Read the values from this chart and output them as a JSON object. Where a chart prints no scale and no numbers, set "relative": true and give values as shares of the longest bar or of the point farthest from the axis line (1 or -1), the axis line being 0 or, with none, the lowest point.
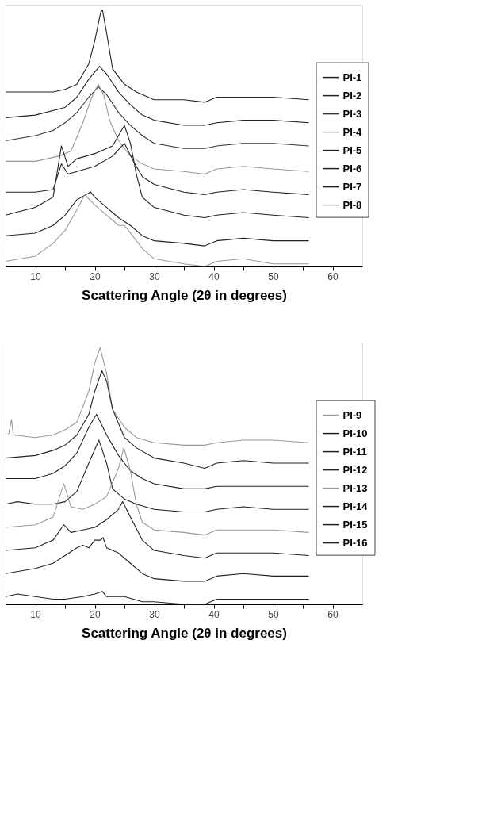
{
  "chart_data": [
    {
      "type": "line",
      "relative": true,
      "xlabel": "Scattering Angle (2θ in degrees)",
      "xlim": [
        5,
        65
      ],
      "xticks": [
        10,
        {
          "value": 15,
          "label": null
        },
        20,
        {
          "value": 25,
          "label": null
        },
        30,
        {
          "value": 35,
          "label": null
        },
        40,
        {
          "value": 45,
          "label": null
        },
        50,
        {
          "value": 55,
          "label": null
        },
        60
      ],
      "legend": "right",
      "grid": false,
      "series": [
        {
          "name": "PI-1",
          "color": "#222222",
          "x": [
            5,
            10,
            13,
            15,
            17,
            19,
            20,
            21,
            21.3,
            22,
            23,
            25,
            27,
            30,
            35,
            38.5,
            40.5,
            45,
            50,
            56
          ],
          "values": [
            0.68,
            0.68,
            0.68,
            0.69,
            0.71,
            0.79,
            0.88,
            0.99,
            1.0,
            0.91,
            0.77,
            0.71,
            0.68,
            0.65,
            0.65,
            0.64,
            0.66,
            0.66,
            0.66,
            0.65
          ]
        },
        {
          "name": "PI-2",
          "color": "#222222",
          "x": [
            5,
            10,
            15,
            17,
            19,
            20.8,
            22,
            24,
            26,
            28,
            30,
            35,
            38.5,
            40.5,
            45,
            50,
            56
          ],
          "values": [
            0.58,
            0.59,
            0.62,
            0.66,
            0.73,
            0.78,
            0.75,
            0.68,
            0.63,
            0.59,
            0.57,
            0.55,
            0.55,
            0.56,
            0.57,
            0.57,
            0.56
          ]
        },
        {
          "name": "PI-3",
          "color": "#333333",
          "x": [
            5,
            10,
            13,
            15,
            17,
            19,
            20.6,
            22,
            24,
            26,
            28,
            30,
            35,
            38.5,
            40.5,
            45,
            50,
            56
          ],
          "values": [
            0.49,
            0.51,
            0.53,
            0.56,
            0.6,
            0.66,
            0.7,
            0.67,
            0.6,
            0.55,
            0.51,
            0.48,
            0.46,
            0.46,
            0.47,
            0.48,
            0.48,
            0.47
          ]
        },
        {
          "name": "PI-4",
          "color": "#999999",
          "x": [
            5,
            10,
            14,
            16,
            18,
            19.5,
            20.6,
            21.5,
            22.5,
            24,
            26,
            28,
            30,
            35,
            38.5,
            40.5,
            45,
            50,
            56
          ],
          "values": [
            0.41,
            0.41,
            0.43,
            0.45,
            0.56,
            0.66,
            0.71,
            0.67,
            0.57,
            0.49,
            0.43,
            0.4,
            0.38,
            0.37,
            0.36,
            0.38,
            0.39,
            0.38,
            0.37
          ]
        },
        {
          "name": "PI-5",
          "color": "#222222",
          "x": [
            5,
            10,
            13,
            14.4,
            15.5,
            20,
            23,
            25,
            26.5,
            28,
            30,
            35,
            38.5,
            40.5,
            45,
            50,
            56
          ],
          "values": [
            0.29,
            0.29,
            0.3,
            0.4,
            0.36,
            0.39,
            0.43,
            0.48,
            0.41,
            0.35,
            0.32,
            0.29,
            0.28,
            0.29,
            0.3,
            0.29,
            0.28
          ]
        },
        {
          "name": "PI-6",
          "color": "#222222",
          "x": [
            5,
            10,
            13,
            14.4,
            15.5,
            17,
            20,
            23,
            25,
            26,
            27,
            28,
            30,
            35,
            38.5,
            40.5,
            45,
            50,
            56
          ],
          "values": [
            0.2,
            0.23,
            0.27,
            0.47,
            0.39,
            0.42,
            0.44,
            0.47,
            0.55,
            0.48,
            0.36,
            0.27,
            0.23,
            0.2,
            0.19,
            0.2,
            0.21,
            0.2,
            0.19
          ]
        },
        {
          "name": "PI-7",
          "color": "#222222",
          "x": [
            5,
            10,
            13,
            15,
            17,
            19.3,
            20,
            22,
            24,
            26,
            28,
            30,
            35,
            38.5,
            40.5,
            45,
            50,
            56
          ],
          "values": [
            0.12,
            0.13,
            0.16,
            0.2,
            0.26,
            0.29,
            0.27,
            0.23,
            0.19,
            0.16,
            0.12,
            0.1,
            0.09,
            0.08,
            0.1,
            0.11,
            0.1,
            0.1
          ]
        },
        {
          "name": "PI-8",
          "color": "#999999",
          "x": [
            5,
            10,
            13,
            15,
            17,
            18.3,
            20,
            22,
            24,
            25,
            26,
            28,
            30,
            35,
            38.5,
            40.5,
            45,
            50,
            56
          ],
          "values": [
            0.02,
            0.04,
            0.09,
            0.14,
            0.22,
            0.28,
            0.24,
            0.2,
            0.16,
            0.16,
            0.13,
            0.07,
            0.03,
            0.01,
            0,
            0.02,
            0.03,
            0.01,
            0.01
          ]
        }
      ]
    },
    {
      "type": "line",
      "relative": true,
      "xlabel": "Scattering Angle (2θ in degrees)",
      "xlim": [
        5,
        65
      ],
      "xticks": [
        10,
        {
          "value": 15,
          "label": null
        },
        20,
        {
          "value": 25,
          "label": null
        },
        30,
        {
          "value": 35,
          "label": null
        },
        40,
        {
          "value": 45,
          "label": null
        },
        50,
        {
          "value": 55,
          "label": null
        },
        60
      ],
      "legend": "right",
      "grid": false,
      "series": [
        {
          "name": "PI-9",
          "color": "#999999",
          "x": [
            5,
            5.5,
            6,
            6.3,
            10,
            13,
            15,
            17,
            19,
            20,
            20.9,
            22,
            23,
            25,
            27,
            30,
            35,
            38.5,
            40.5,
            45,
            50,
            56
          ],
          "values": [
            0.66,
            0.66,
            0.72,
            0.66,
            0.65,
            0.66,
            0.68,
            0.71,
            0.83,
            0.94,
            1.0,
            0.9,
            0.76,
            0.69,
            0.65,
            0.63,
            0.62,
            0.62,
            0.63,
            0.64,
            0.64,
            0.63
          ]
        },
        {
          "name": "PI-10",
          "color": "#222222",
          "x": [
            5,
            10,
            13,
            15,
            17,
            19,
            20,
            21.2,
            22,
            23,
            25,
            27,
            30,
            35,
            38.5,
            40.5,
            45,
            50,
            56
          ],
          "values": [
            0.57,
            0.58,
            0.6,
            0.62,
            0.66,
            0.74,
            0.83,
            0.91,
            0.87,
            0.76,
            0.65,
            0.61,
            0.57,
            0.55,
            0.53,
            0.55,
            0.56,
            0.55,
            0.55
          ]
        },
        {
          "name": "PI-11",
          "color": "#222222",
          "x": [
            5,
            10,
            13,
            15,
            17,
            19,
            20.3,
            22,
            24,
            26,
            28,
            30,
            35,
            38.5,
            40.5,
            45,
            50,
            56
          ],
          "values": [
            0.49,
            0.49,
            0.51,
            0.54,
            0.59,
            0.69,
            0.74,
            0.66,
            0.58,
            0.52,
            0.49,
            0.47,
            0.45,
            0.45,
            0.46,
            0.46,
            0.46,
            0.46
          ]
        },
        {
          "name": "PI-12",
          "color": "#222222",
          "x": [
            5,
            7,
            10,
            13,
            15,
            17,
            19,
            20.7,
            22,
            23,
            25,
            27,
            30,
            35,
            38.5,
            40.5,
            45,
            50,
            56
          ],
          "values": [
            0.39,
            0.4,
            0.39,
            0.39,
            0.4,
            0.44,
            0.55,
            0.64,
            0.55,
            0.45,
            0.41,
            0.39,
            0.37,
            0.36,
            0.36,
            0.37,
            0.38,
            0.37,
            0.37
          ]
        },
        {
          "name": "PI-13",
          "color": "#999999",
          "x": [
            5,
            10,
            13,
            14.8,
            16,
            18,
            20,
            22,
            24,
            24.9,
            26,
            27,
            28,
            30,
            35,
            38.5,
            40.5,
            45,
            50,
            56
          ],
          "values": [
            0.3,
            0.31,
            0.34,
            0.47,
            0.38,
            0.37,
            0.39,
            0.42,
            0.53,
            0.61,
            0.52,
            0.39,
            0.32,
            0.29,
            0.28,
            0.27,
            0.29,
            0.29,
            0.29,
            0.28
          ]
        },
        {
          "name": "PI-14",
          "color": "#222222",
          "x": [
            5,
            10,
            13,
            14.8,
            16,
            18,
            20,
            22,
            24,
            24.7,
            26,
            28,
            30,
            35,
            38.5,
            40.5,
            45,
            50,
            56
          ],
          "values": [
            0.21,
            0.22,
            0.25,
            0.31,
            0.28,
            0.29,
            0.3,
            0.33,
            0.37,
            0.4,
            0.34,
            0.25,
            0.21,
            0.19,
            0.18,
            0.2,
            0.2,
            0.2,
            0.19
          ]
        },
        {
          "name": "PI-15",
          "color": "#222222",
          "x": [
            5,
            10,
            13,
            15,
            17,
            18,
            19,
            20,
            21,
            21.4,
            22,
            24,
            26,
            28,
            30,
            35,
            38.5,
            40.5,
            45,
            50,
            56
          ],
          "values": [
            0.12,
            0.14,
            0.16,
            0.19,
            0.22,
            0.23,
            0.22,
            0.25,
            0.25,
            0.26,
            0.22,
            0.2,
            0.16,
            0.12,
            0.1,
            0.09,
            0.09,
            0.11,
            0.12,
            0.11,
            0.11
          ]
        },
        {
          "name": "PI-16",
          "color": "#222222",
          "x": [
            5,
            7,
            10,
            13,
            15,
            18,
            20,
            21.3,
            22,
            25,
            28,
            30,
            35,
            38.5,
            40.5,
            45,
            50,
            56
          ],
          "values": [
            0.03,
            0.04,
            0.03,
            0.02,
            0.02,
            0.03,
            0.04,
            0.05,
            0.03,
            0.03,
            0.01,
            0.01,
            0.0,
            0,
            0.02,
            0.02,
            0.02,
            0.02
          ]
        }
      ]
    }
  ]
}
